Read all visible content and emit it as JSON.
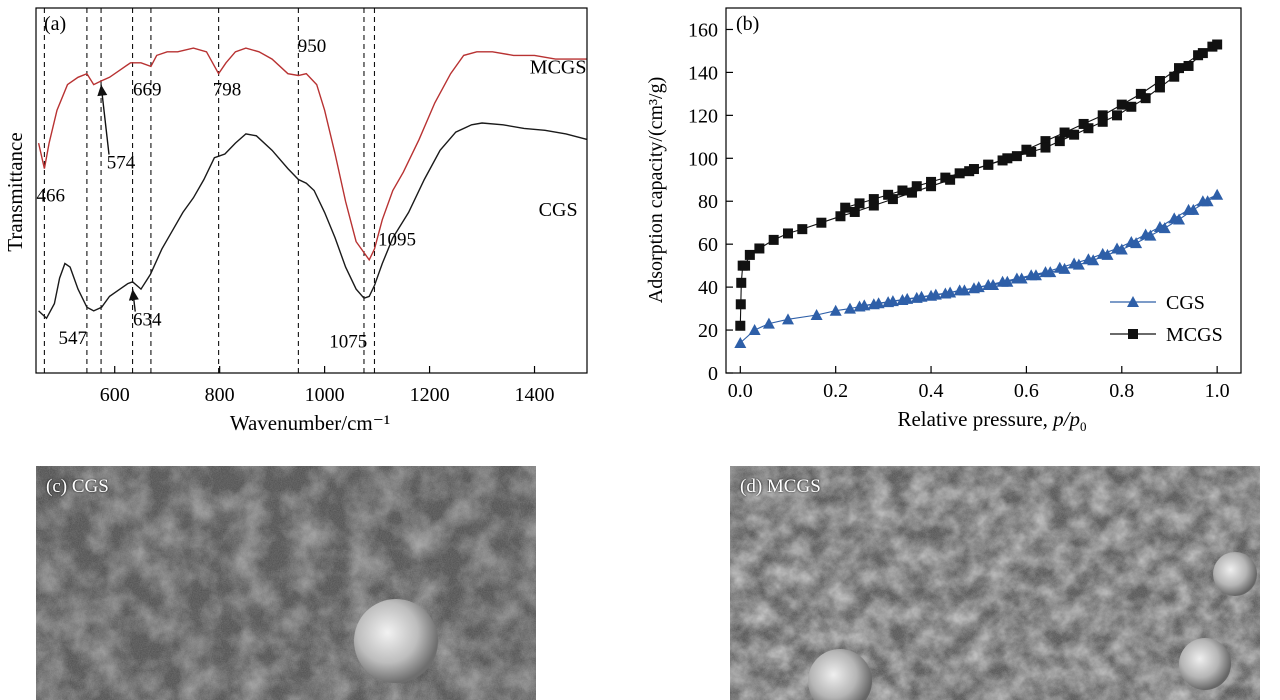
{
  "chart_data": [
    {
      "type": "line",
      "panel_label": "(a)",
      "title": "",
      "xlabel": "Wavenumber/cm⁻¹",
      "ylabel": "Transmittance",
      "xlim": [
        450,
        1500
      ],
      "ylim": [
        0,
        1
      ],
      "xticks": [
        600,
        800,
        1000,
        1200,
        1400
      ],
      "grid": false,
      "series": [
        {
          "name": "MCGS",
          "color": "#b83232",
          "label_pos": [
            1445,
            0.82
          ],
          "points": [
            [
              455,
              0.63
            ],
            [
              466,
              0.56
            ],
            [
              475,
              0.63
            ],
            [
              490,
              0.72
            ],
            [
              510,
              0.79
            ],
            [
              530,
              0.81
            ],
            [
              547,
              0.82
            ],
            [
              560,
              0.79
            ],
            [
              574,
              0.8
            ],
            [
              590,
              0.81
            ],
            [
              610,
              0.83
            ],
            [
              630,
              0.85
            ],
            [
              650,
              0.85
            ],
            [
              669,
              0.84
            ],
            [
              680,
              0.87
            ],
            [
              700,
              0.88
            ],
            [
              720,
              0.88
            ],
            [
              750,
              0.89
            ],
            [
              775,
              0.88
            ],
            [
              798,
              0.82
            ],
            [
              812,
              0.85
            ],
            [
              830,
              0.88
            ],
            [
              850,
              0.89
            ],
            [
              875,
              0.88
            ],
            [
              900,
              0.86
            ],
            [
              930,
              0.82
            ],
            [
              950,
              0.815
            ],
            [
              965,
              0.82
            ],
            [
              985,
              0.79
            ],
            [
              1000,
              0.72
            ],
            [
              1020,
              0.6
            ],
            [
              1040,
              0.47
            ],
            [
              1060,
              0.36
            ],
            [
              1075,
              0.33
            ],
            [
              1085,
              0.31
            ],
            [
              1095,
              0.34
            ],
            [
              1110,
              0.42
            ],
            [
              1130,
              0.5
            ],
            [
              1150,
              0.55
            ],
            [
              1180,
              0.64
            ],
            [
              1210,
              0.74
            ],
            [
              1240,
              0.82
            ],
            [
              1265,
              0.87
            ],
            [
              1290,
              0.88
            ],
            [
              1320,
              0.88
            ],
            [
              1360,
              0.87
            ],
            [
              1400,
              0.87
            ],
            [
              1440,
              0.86
            ],
            [
              1480,
              0.86
            ],
            [
              1500,
              0.86
            ]
          ]
        },
        {
          "name": "CGS",
          "color": "#1a1a1a",
          "label_pos": [
            1445,
            0.43
          ],
          "points": [
            [
              455,
              0.17
            ],
            [
              470,
              0.15
            ],
            [
              485,
              0.19
            ],
            [
              495,
              0.26
            ],
            [
              505,
              0.3
            ],
            [
              515,
              0.29
            ],
            [
              530,
              0.23
            ],
            [
              547,
              0.18
            ],
            [
              560,
              0.17
            ],
            [
              575,
              0.18
            ],
            [
              590,
              0.21
            ],
            [
              610,
              0.23
            ],
            [
              625,
              0.245
            ],
            [
              634,
              0.25
            ],
            [
              650,
              0.23
            ],
            [
              668,
              0.27
            ],
            [
              690,
              0.34
            ],
            [
              710,
              0.39
            ],
            [
              730,
              0.44
            ],
            [
              750,
              0.48
            ],
            [
              770,
              0.53
            ],
            [
              790,
              0.59
            ],
            [
              810,
              0.6
            ],
            [
              830,
              0.63
            ],
            [
              850,
              0.655
            ],
            [
              870,
              0.65
            ],
            [
              900,
              0.61
            ],
            [
              930,
              0.56
            ],
            [
              950,
              0.53
            ],
            [
              965,
              0.52
            ],
            [
              980,
              0.5
            ],
            [
              1000,
              0.44
            ],
            [
              1020,
              0.37
            ],
            [
              1040,
              0.29
            ],
            [
              1060,
              0.23
            ],
            [
              1075,
              0.205
            ],
            [
              1085,
              0.21
            ],
            [
              1095,
              0.24
            ],
            [
              1110,
              0.3
            ],
            [
              1130,
              0.37
            ],
            [
              1160,
              0.44
            ],
            [
              1190,
              0.53
            ],
            [
              1220,
              0.61
            ],
            [
              1250,
              0.66
            ],
            [
              1280,
              0.68
            ],
            [
              1300,
              0.685
            ],
            [
              1340,
              0.68
            ],
            [
              1380,
              0.67
            ],
            [
              1420,
              0.665
            ],
            [
              1460,
              0.655
            ],
            [
              1500,
              0.64
            ]
          ]
        }
      ],
      "vlines": [
        466,
        547,
        574,
        634,
        669,
        798,
        950,
        1075,
        1095
      ],
      "annotations": [
        {
          "text": "466",
          "at": [
            478,
            0.47
          ]
        },
        {
          "text": "547",
          "at": [
            520,
            0.08
          ]
        },
        {
          "text": "574",
          "at": [
            612,
            0.56
          ],
          "arrow_to": [
            574,
            0.79
          ]
        },
        {
          "text": "634",
          "at": [
            662,
            0.13
          ],
          "arrow_to": [
            634,
            0.23
          ]
        },
        {
          "text": "669",
          "at": [
            662,
            0.76
          ]
        },
        {
          "text": "798",
          "at": [
            814,
            0.76
          ]
        },
        {
          "text": "950",
          "at": [
            976,
            0.88
          ]
        },
        {
          "text": "1075",
          "at": [
            1045,
            0.07
          ]
        },
        {
          "text": "1095",
          "at": [
            1138,
            0.35
          ]
        }
      ]
    },
    {
      "type": "line",
      "panel_label": "(b)",
      "title": "",
      "xlabel": "Relative pressure, p/p0",
      "ylabel": "Adsorption capacity/(cm³/g)",
      "xlim": [
        -0.03,
        1.05
      ],
      "ylim": [
        0,
        170
      ],
      "xticks": [
        0.0,
        0.2,
        0.4,
        0.6,
        0.8,
        1.0
      ],
      "yticks": [
        0,
        20,
        40,
        60,
        80,
        100,
        120,
        140,
        160
      ],
      "grid": false,
      "legend": "bottom-right",
      "series": [
        {
          "name": "CGS",
          "color": "#2e5fa8",
          "marker": "triangle",
          "x": [
            0.0,
            0.03,
            0.06,
            0.1,
            0.16,
            0.2,
            0.23,
            0.26,
            0.29,
            0.32,
            0.35,
            0.38,
            0.41,
            0.44,
            0.47,
            0.5,
            0.53,
            0.56,
            0.59,
            0.62,
            0.65,
            0.68,
            0.71,
            0.74,
            0.77,
            0.8,
            0.83,
            0.86,
            0.89,
            0.92,
            0.95,
            0.98,
            1.0,
            0.97,
            0.94,
            0.91,
            0.88,
            0.85,
            0.82,
            0.79,
            0.76,
            0.73,
            0.7,
            0.67,
            0.64,
            0.61,
            0.58,
            0.55,
            0.52,
            0.49,
            0.46,
            0.43,
            0.4,
            0.37,
            0.34,
            0.31,
            0.28,
            0.25
          ],
          "values": [
            14,
            20,
            23,
            25,
            27,
            29,
            30,
            31.5,
            32.5,
            33.5,
            34.5,
            35.5,
            36.5,
            37.5,
            38.5,
            40,
            41,
            42.5,
            44,
            45.5,
            47,
            48.5,
            50.5,
            52.5,
            55,
            57.5,
            60.5,
            64,
            67.5,
            71.5,
            76,
            80,
            83,
            80,
            76,
            72,
            68,
            64.5,
            61,
            58,
            55.5,
            53,
            51,
            49,
            47,
            45.5,
            44,
            42.5,
            41,
            39.5,
            38.5,
            37,
            36,
            35,
            34,
            33,
            32,
            31
          ]
        },
        {
          "name": "MCGS",
          "color": "#111111",
          "marker": "square",
          "x": [
            0.0,
            0.001,
            0.002,
            0.005,
            0.01,
            0.02,
            0.04,
            0.07,
            0.1,
            0.13,
            0.17,
            0.21,
            0.24,
            0.28,
            0.32,
            0.36,
            0.4,
            0.44,
            0.48,
            0.52,
            0.56,
            0.6,
            0.64,
            0.68,
            0.72,
            0.76,
            0.8,
            0.84,
            0.88,
            0.92,
            0.96,
            0.99,
            1.0,
            0.97,
            0.94,
            0.91,
            0.88,
            0.85,
            0.82,
            0.79,
            0.76,
            0.73,
            0.7,
            0.67,
            0.64,
            0.61,
            0.58,
            0.55,
            0.52,
            0.49,
            0.46,
            0.43,
            0.4,
            0.37,
            0.34,
            0.31,
            0.28,
            0.25,
            0.22
          ],
          "values": [
            22,
            32,
            42,
            50,
            50,
            55,
            58,
            62,
            65,
            67,
            70,
            73,
            75,
            78,
            81,
            84,
            87,
            90,
            94,
            97,
            100,
            104,
            108,
            112,
            116,
            120,
            125,
            130,
            136,
            142,
            148,
            152,
            153,
            149,
            143,
            138,
            133,
            128,
            124,
            120,
            117,
            114,
            111,
            108,
            105,
            103,
            101,
            99,
            97,
            95,
            93,
            91,
            89,
            87,
            85,
            83,
            81,
            79,
            77
          ]
        }
      ]
    }
  ],
  "sem_panels": [
    {
      "label": "(c) CGS"
    },
    {
      "label": "(d) MCGS"
    }
  ]
}
